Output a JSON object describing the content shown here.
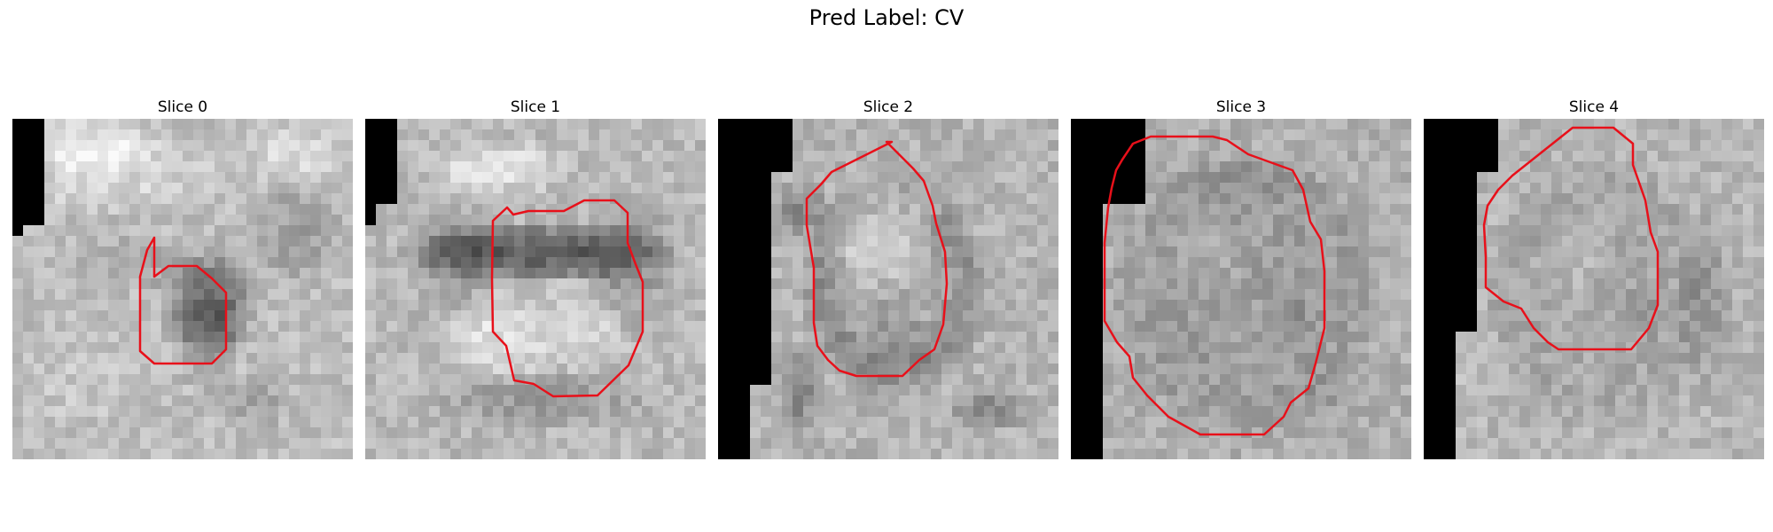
{
  "figure": {
    "title": "Pred Label: CV"
  },
  "colors": {
    "contour": "#e8101a",
    "mask": "#000000"
  },
  "slices": [
    {
      "title": "Slice 0"
    },
    {
      "title": "Slice 1"
    },
    {
      "title": "Slice 2"
    },
    {
      "title": "Slice 3"
    },
    {
      "title": "Slice 4"
    }
  ]
}
